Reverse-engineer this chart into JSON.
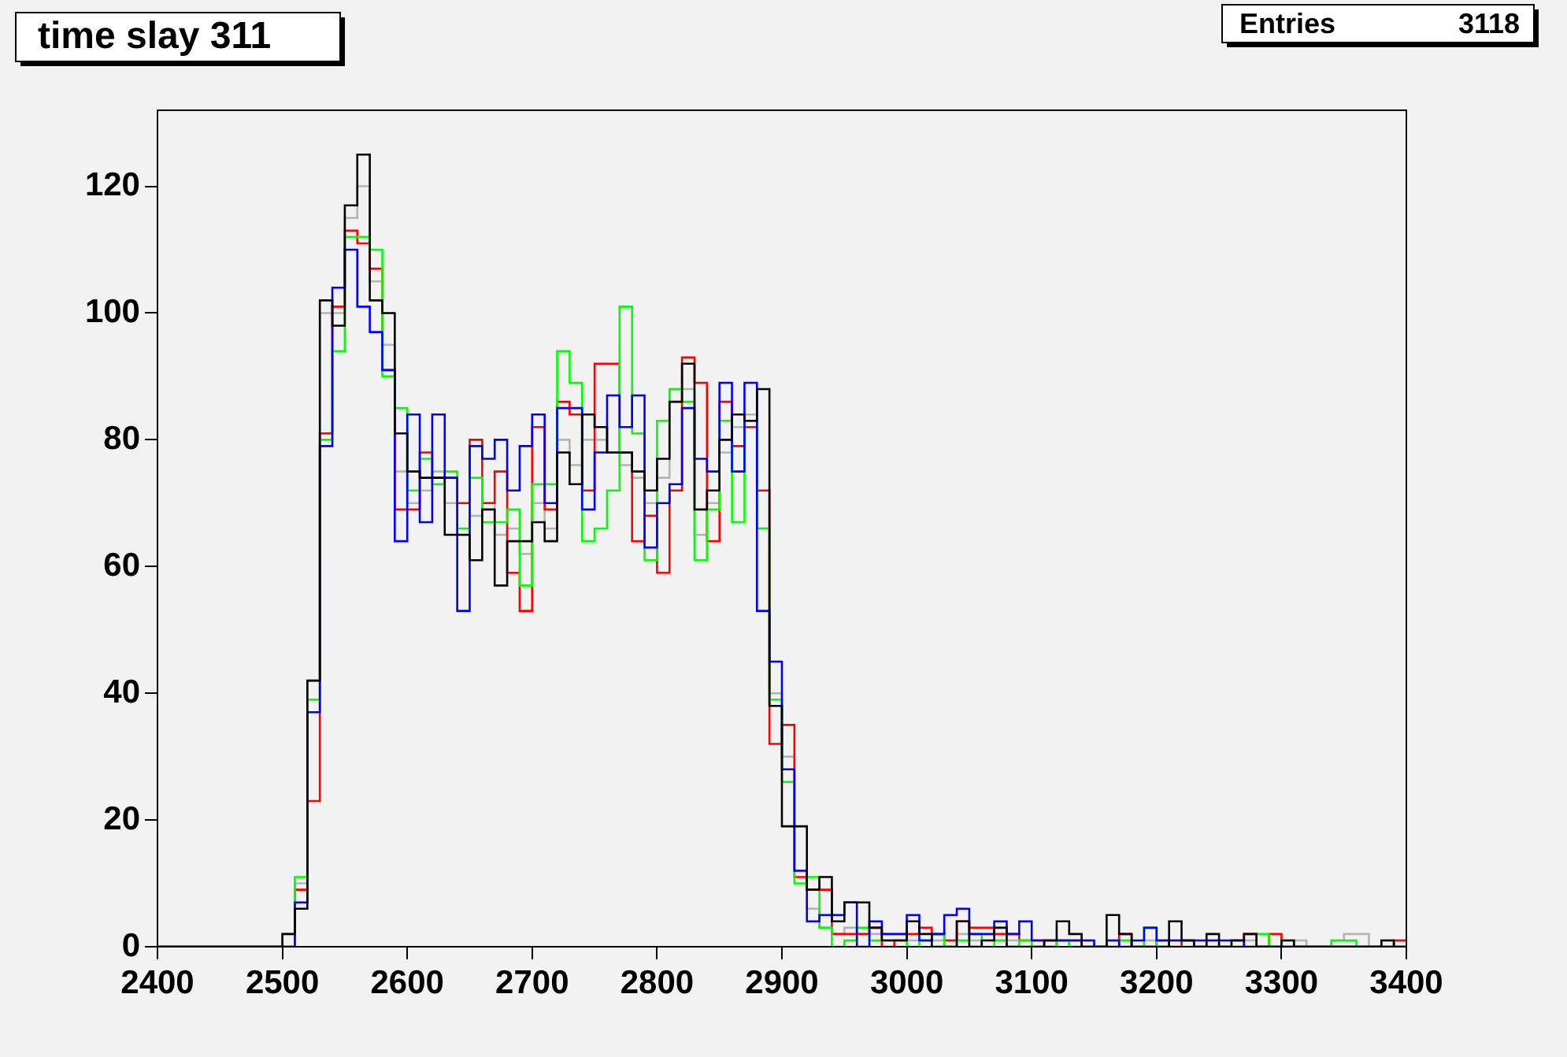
{
  "chart_data": {
    "type": "histogram",
    "title": "time slay 311",
    "annotations": [
      "Entries",
      "3118"
    ],
    "bins": [
      2400,
      2410,
      2420,
      2430,
      2440,
      2450,
      2460,
      2470,
      2480,
      2490,
      2500,
      2510,
      2520,
      2530,
      2540,
      2550,
      2560,
      2570,
      2580,
      2590,
      2600,
      2610,
      2620,
      2630,
      2640,
      2650,
      2660,
      2670,
      2680,
      2690,
      2700,
      2710,
      2720,
      2730,
      2740,
      2750,
      2760,
      2770,
      2780,
      2790,
      2800,
      2810,
      2820,
      2830,
      2840,
      2850,
      2860,
      2870,
      2880,
      2890,
      2900,
      2910,
      2920,
      2930,
      2940,
      2950,
      2960,
      2970,
      2980,
      2990,
      3000,
      3010,
      3020,
      3030,
      3040,
      3050,
      3060,
      3070,
      3080,
      3090,
      3100,
      3110,
      3120,
      3130,
      3140,
      3150,
      3160,
      3170,
      3180,
      3190,
      3200,
      3210,
      3220,
      3230,
      3240,
      3250,
      3260,
      3270,
      3280,
      3290,
      3300,
      3310,
      3320,
      3330,
      3340,
      3350,
      3360,
      3370,
      3380,
      3390,
      3400
    ],
    "series": [
      {
        "color": "#b4b4b4",
        "values": [
          0,
          0,
          0,
          0,
          0,
          0,
          0,
          0,
          0,
          0,
          2,
          10,
          42,
          100,
          100,
          115,
          120,
          105,
          95,
          75,
          70,
          72,
          75,
          70,
          65,
          68,
          70,
          65,
          66,
          62,
          70,
          66,
          80,
          76,
          80,
          80,
          78,
          76,
          74,
          70,
          74,
          88,
          88,
          65,
          70,
          78,
          82,
          84,
          66,
          40,
          30,
          12,
          6,
          3,
          2,
          3,
          2,
          2,
          2,
          2,
          1,
          1,
          1,
          1,
          2,
          1,
          1,
          1,
          1,
          1,
          0,
          1,
          1,
          0,
          1,
          0,
          1,
          1,
          0,
          1,
          0,
          1,
          0,
          0,
          1,
          0,
          1,
          1,
          0,
          0,
          0,
          1,
          0,
          0,
          1,
          2,
          2,
          0,
          0,
          1
        ]
      },
      {
        "color": "#ff0000",
        "values": [
          0,
          0,
          0,
          0,
          0,
          0,
          0,
          0,
          0,
          0,
          0,
          9,
          23,
          81,
          101,
          113,
          111,
          107,
          91,
          69,
          69,
          78,
          74,
          74,
          70,
          80,
          70,
          75,
          59,
          53,
          82,
          69,
          86,
          84,
          72,
          92,
          92,
          78,
          64,
          68,
          59,
          72,
          93,
          89,
          64,
          86,
          79,
          82,
          72,
          32,
          35,
          11,
          9,
          9,
          2,
          2,
          2,
          3,
          0,
          1,
          2,
          3,
          2,
          1,
          4,
          3,
          3,
          2,
          2,
          1,
          1,
          0,
          1,
          1,
          0,
          0,
          0,
          2,
          0,
          0,
          1,
          0,
          1,
          0,
          0,
          0,
          0,
          2,
          0,
          2,
          0,
          0,
          0,
          0,
          0,
          0,
          0,
          0,
          0,
          1
        ]
      },
      {
        "color": "#00ff00",
        "values": [
          0,
          0,
          0,
          0,
          0,
          0,
          0,
          0,
          0,
          0,
          0,
          11,
          39,
          80,
          94,
          112,
          112,
          110,
          90,
          85,
          72,
          77,
          73,
          75,
          66,
          74,
          67,
          67,
          69,
          57,
          73,
          73,
          94,
          89,
          64,
          66,
          72,
          101,
          81,
          61,
          83,
          88,
          86,
          61,
          69,
          83,
          67,
          83,
          66,
          39,
          26,
          10,
          11,
          3,
          0,
          1,
          3,
          1,
          1,
          1,
          0,
          1,
          2,
          0,
          1,
          2,
          0,
          1,
          0,
          1,
          0,
          0,
          1,
          0,
          0,
          0,
          0,
          1,
          0,
          3,
          0,
          0,
          0,
          0,
          0,
          0,
          0,
          0,
          2,
          0,
          1,
          0,
          0,
          0,
          1,
          1,
          0,
          0,
          1,
          0
        ]
      },
      {
        "color": "#0000ff",
        "values": [
          0,
          0,
          0,
          0,
          0,
          0,
          0,
          0,
          0,
          0,
          0,
          7,
          37,
          79,
          104,
          110,
          101,
          97,
          91,
          64,
          84,
          67,
          84,
          74,
          53,
          79,
          77,
          80,
          72,
          79,
          84,
          70,
          85,
          85,
          69,
          78,
          87,
          82,
          87,
          63,
          70,
          73,
          85,
          77,
          75,
          89,
          75,
          89,
          53,
          45,
          28,
          12,
          4,
          5,
          5,
          7,
          0,
          4,
          2,
          2,
          5,
          1,
          2,
          5,
          6,
          2,
          2,
          4,
          2,
          4,
          1,
          1,
          1,
          1,
          1,
          0,
          1,
          0,
          1,
          3,
          1,
          1,
          1,
          1,
          1,
          1,
          1,
          0,
          0,
          0,
          0,
          0,
          0,
          0,
          0,
          0,
          0,
          0,
          0,
          0
        ]
      },
      {
        "color": "#000000",
        "values": [
          0,
          0,
          0,
          0,
          0,
          0,
          0,
          0,
          0,
          0,
          2,
          6,
          42,
          102,
          98,
          117,
          125,
          102,
          100,
          81,
          75,
          74,
          74,
          65,
          65,
          61,
          69,
          57,
          64,
          64,
          67,
          64,
          78,
          73,
          84,
          82,
          78,
          78,
          75,
          72,
          77,
          86,
          92,
          69,
          72,
          80,
          84,
          83,
          88,
          38,
          19,
          19,
          9,
          11,
          4,
          7,
          7,
          3,
          1,
          1,
          4,
          2,
          0,
          0,
          4,
          0,
          1,
          3,
          0,
          0,
          0,
          1,
          4,
          2,
          0,
          0,
          5,
          2,
          0,
          0,
          0,
          4,
          1,
          0,
          2,
          0,
          1,
          2,
          0,
          0,
          1,
          0,
          0,
          0,
          0,
          0,
          0,
          0,
          1,
          0
        ]
      }
    ],
    "xlim": [
      2400,
      3400
    ],
    "xticks": [
      2400,
      2500,
      2600,
      2700,
      2800,
      2900,
      3000,
      3100,
      3200,
      3300,
      3400
    ],
    "ylim": [
      0,
      132
    ],
    "yticks": [
      0,
      20,
      40,
      60,
      80,
      100,
      120
    ]
  }
}
